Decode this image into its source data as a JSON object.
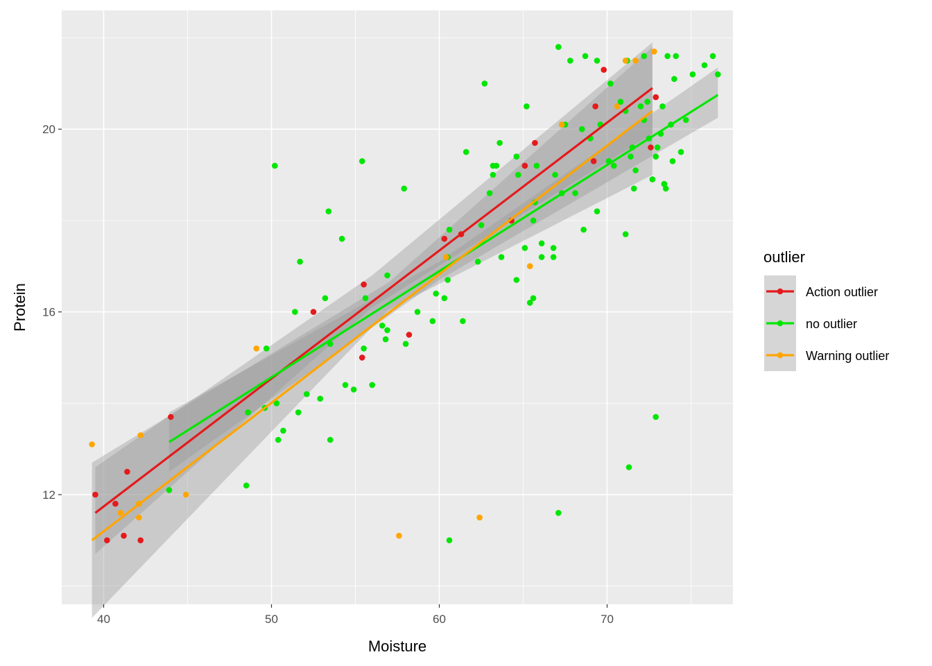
{
  "chart_data": {
    "type": "scatter",
    "xlabel": "Moisture",
    "ylabel": "Protein",
    "xlim": [
      37.5,
      77.5
    ],
    "ylim": [
      9.6,
      22.6
    ],
    "x_ticks": [
      40,
      50,
      60,
      70
    ],
    "y_ticks": [
      12,
      16,
      20
    ],
    "x_tick_labels": [
      "40",
      "50",
      "60",
      "70"
    ],
    "y_tick_labels": [
      "12",
      "16",
      "20"
    ],
    "grid": true,
    "legend": {
      "title": "outlier",
      "placement": "right",
      "entries": [
        "Action outlier",
        "no outlier",
        "Warning outlier"
      ]
    },
    "colors": {
      "panel_bg": "#EBEBEB",
      "grid": "#FFFFFF",
      "ribbon": "#999999",
      "Action outlier": "#E41A1C",
      "no outlier": "#00E600",
      "Warning outlier": "#FFA500"
    },
    "series": [
      {
        "name": "Action outlier",
        "color": "#E41A1C",
        "x": [
          39.5,
          40.2,
          40.7,
          41.2,
          41.4,
          42.2,
          44.0,
          52.5,
          55.5,
          55.4,
          58.2,
          60.3,
          61.3,
          64.3,
          65.1,
          65.7,
          69.3,
          69.2,
          69.8,
          72.9,
          72.6
        ],
        "y": [
          12.0,
          11.0,
          11.8,
          11.1,
          12.5,
          11.0,
          13.7,
          16.0,
          16.6,
          15.0,
          15.5,
          17.6,
          17.7,
          18.0,
          19.2,
          19.7,
          20.5,
          19.3,
          21.3,
          20.7,
          19.6
        ],
        "fit": {
          "x": [
            39.5,
            72.7
          ],
          "y": [
            11.6,
            20.9
          ]
        },
        "band": {
          "x": [
            39.5,
            56.0,
            72.7
          ],
          "lower": [
            10.7,
            16.1,
            19.9
          ],
          "upper": [
            12.6,
            16.8,
            21.9
          ]
        }
      },
      {
        "name": "no outlier",
        "color": "#00E600",
        "x": [
          43.9,
          48.5,
          48.6,
          49.6,
          49.7,
          50.2,
          50.3,
          50.4,
          50.7,
          51.4,
          51.6,
          51.7,
          52.1,
          52.9,
          53.2,
          53.5,
          53.5,
          53.4,
          54.2,
          54.4,
          54.9,
          55.4,
          55.5,
          55.6,
          56.0,
          56.6,
          56.8,
          56.9,
          56.9,
          57.9,
          58.0,
          58.7,
          59.6,
          59.8,
          60.3,
          60.5,
          60.5,
          60.6,
          61.4,
          61.6,
          62.3,
          62.5,
          62.7,
          63.0,
          63.2,
          63.2,
          63.4,
          63.7,
          63.6,
          64.6,
          64.7,
          64.6,
          65.1,
          65.2,
          65.4,
          65.6,
          65.6,
          65.7,
          65.8,
          66.1,
          66.1,
          66.8,
          66.8,
          66.9,
          67.1,
          67.3,
          67.5,
          67.8,
          68.1,
          68.6,
          68.7,
          68.5,
          69.0,
          69.4,
          69.4,
          69.6,
          70.1,
          70.2,
          70.4,
          70.8,
          71.1,
          71.2,
          71.4,
          71.5,
          71.6,
          71.7,
          72.0,
          72.2,
          72.2,
          72.4,
          72.5,
          72.7,
          72.9,
          73.0,
          73.2,
          73.3,
          73.4,
          73.5,
          73.6,
          73.8,
          73.9,
          74.0,
          74.1,
          74.4,
          74.7,
          75.1,
          75.8,
          76.3,
          76.6,
          71.1,
          72.9,
          71.3,
          60.6,
          67.1,
          73.4
        ],
        "y": [
          12.1,
          12.2,
          13.8,
          13.9,
          15.2,
          19.2,
          14.0,
          13.2,
          13.4,
          16.0,
          13.8,
          17.1,
          14.2,
          14.1,
          16.3,
          15.3,
          13.2,
          18.2,
          17.6,
          14.4,
          14.3,
          19.3,
          15.2,
          16.3,
          14.4,
          15.7,
          15.4,
          15.6,
          16.8,
          18.7,
          15.3,
          16.0,
          15.8,
          16.4,
          16.3,
          16.7,
          17.2,
          17.8,
          15.8,
          19.5,
          17.1,
          17.9,
          21.0,
          18.6,
          19.2,
          19.0,
          19.2,
          17.2,
          19.7,
          16.7,
          19.0,
          19.4,
          17.4,
          20.5,
          16.2,
          16.3,
          18.0,
          18.4,
          19.2,
          17.2,
          17.5,
          17.2,
          17.4,
          19.0,
          21.8,
          18.6,
          20.1,
          21.5,
          18.6,
          17.8,
          21.6,
          20.0,
          19.8,
          18.2,
          21.5,
          20.1,
          19.3,
          21.0,
          19.2,
          20.6,
          20.4,
          21.5,
          19.4,
          19.6,
          18.7,
          19.1,
          20.5,
          21.6,
          20.2,
          20.6,
          19.8,
          18.9,
          19.4,
          19.6,
          19.9,
          20.5,
          18.8,
          18.7,
          21.6,
          20.1,
          19.3,
          21.1,
          21.6,
          19.5,
          20.2,
          21.2,
          21.4,
          21.6,
          21.2,
          17.7,
          13.7,
          12.6,
          11.0,
          11.6,
          18.8
        ],
        "fit": {
          "x": [
            43.9,
            76.6
          ],
          "y": [
            13.15,
            20.75
          ]
        },
        "band": {
          "x": [
            43.9,
            60.0,
            76.6
          ],
          "lower": [
            12.5,
            16.7,
            20.25
          ],
          "upper": [
            13.8,
            17.1,
            21.35
          ]
        }
      },
      {
        "name": "Warning outlier",
        "color": "#FFA500",
        "x": [
          39.3,
          41.0,
          42.1,
          42.1,
          42.2,
          44.9,
          49.1,
          57.6,
          60.4,
          62.4,
          65.4,
          67.3,
          70.6,
          71.1,
          71.7,
          72.8
        ],
        "y": [
          13.1,
          11.6,
          11.8,
          11.5,
          13.3,
          12.0,
          15.2,
          11.1,
          17.2,
          11.5,
          17.0,
          20.1,
          20.5,
          21.5,
          21.5,
          21.7
        ],
        "fit": {
          "x": [
            39.3,
            72.7
          ],
          "y": [
            11.0,
            20.4
          ]
        },
        "band": {
          "x": [
            39.3,
            57.0,
            72.7
          ],
          "lower": [
            9.3,
            16.05,
            19.0
          ],
          "upper": [
            12.7,
            16.65,
            21.8
          ]
        }
      }
    ]
  }
}
